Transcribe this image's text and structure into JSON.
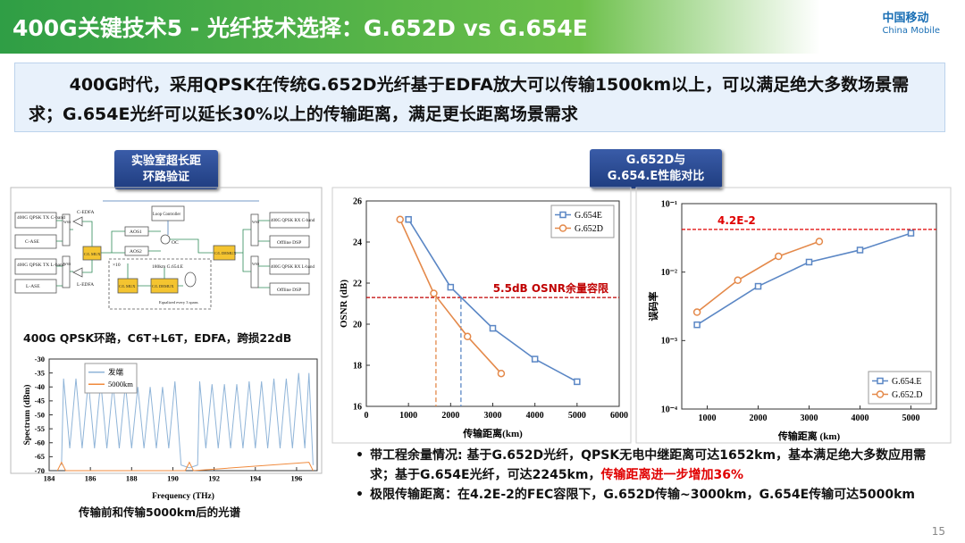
{
  "header": {
    "title": "400G关键技术5 - 光纤技术选择：G.652D vs G.654E",
    "logo_cn": "中国移动",
    "logo_en": "China Mobile"
  },
  "summary": "400G时代，采用QPSK在传统G.652D光纤基于EDFA放大可以传输1500km以上，可以满足绝大多数场景需求；G.654E光纤可以延长30%以上的传输距离，满足更长距离场景需求",
  "badges": [
    [
      "实验室超长距",
      "环路验证"
    ],
    [
      "G.652D与",
      "G.654.E性能对比"
    ]
  ],
  "diagram": {
    "nodes": [
      "400G QPSK TX C-band",
      "C-ASE",
      "400G QPSK TX L-band",
      "L-ASE",
      "WSS",
      "WSS",
      "C-EDFA",
      "L-EDFA",
      "C/L MUX",
      "AOS1",
      "AOS2",
      "OC",
      "Loop Controller",
      "C/L DEMUX",
      "WSS",
      "WSS",
      "400G QPSK RX C-band",
      "Offline DSP",
      "400G QPSK RX L-band",
      "Offline DSP",
      "×10",
      "180km G.654.E",
      "C/L MUX",
      "C/L DEMUX",
      "Equalized every 3 spans"
    ]
  },
  "captions": [
    "400G QPSK环路，C6T+L6T，EDFA，跨损22dB",
    "传输前和传输5000km后的光谱"
  ],
  "bullets": [
    [
      "带工程余量情况: 基于G.652D光纤，QPSK无电中继距离可达1652km，基本满足绝大多数应用需求；基于G.654E光纤，可达2245km，",
      "传输距离进一步增加36%"
    ],
    [
      "极限传输距离：在4.2E-2的FEC容限下，G.652D传输~3000km，G.654E传输可达5000km"
    ]
  ],
  "page_number": "15",
  "chart_data": [
    {
      "type": "line",
      "xlabel": "传输距离(km)",
      "ylabel": "OSNR (dB)",
      "xlim": [
        0,
        6000
      ],
      "xticks": [
        0,
        1000,
        2000,
        3000,
        4000,
        5000,
        6000
      ],
      "ylim": [
        16,
        26
      ],
      "yticks": [
        16,
        18,
        20,
        22,
        24,
        26
      ],
      "legend": "upper right",
      "series": [
        {
          "name": "G.654E",
          "color": "#5b87c5",
          "marker": "square",
          "x": [
            1000,
            2000,
            3000,
            4000,
            5000
          ],
          "values": [
            25.1,
            21.8,
            19.8,
            18.3,
            17.2
          ]
        },
        {
          "name": "G.652D",
          "color": "#e4894a",
          "marker": "circle",
          "x": [
            800,
            1600,
            2400,
            3200
          ],
          "values": [
            25.1,
            21.5,
            19.4,
            17.6
          ]
        }
      ],
      "hline": {
        "value": 21.3,
        "label": "5.5dB OSNR余量容限",
        "color": "#c00000"
      },
      "vlines": [
        {
          "x": 1652,
          "color": "#e4894a"
        },
        {
          "x": 2245,
          "color": "#5b87c5"
        }
      ]
    },
    {
      "type": "line",
      "log_y": true,
      "xlabel": "传输距离 (km)",
      "ylabel": "误码率",
      "xlim": [
        500,
        5500
      ],
      "xticks": [
        1000,
        2000,
        3000,
        4000,
        5000
      ],
      "ylim": [
        0.0001,
        0.1
      ],
      "yticks": [
        {
          "value": 0.0001,
          "label": "10⁻⁴"
        },
        {
          "value": 0.001,
          "label": "10⁻³"
        },
        {
          "value": 0.01,
          "label": "10⁻²"
        },
        {
          "value": 0.1,
          "label": "10⁻¹"
        }
      ],
      "legend": "lower right",
      "series": [
        {
          "name": "G.654.E",
          "color": "#5b87c5",
          "marker": "square",
          "x": [
            800,
            2000,
            3000,
            4000,
            5000
          ],
          "values": [
            0.0017,
            0.0062,
            0.014,
            0.021,
            0.037
          ]
        },
        {
          "name": "G.652.D",
          "color": "#e4894a",
          "marker": "circle",
          "x": [
            800,
            1600,
            2400,
            3200
          ],
          "values": [
            0.0026,
            0.0076,
            0.017,
            0.028
          ]
        }
      ],
      "hline": {
        "value": 0.042,
        "label": "4.2E-2",
        "color": "#e00000"
      }
    },
    {
      "type": "line",
      "xlabel": "Frequency (THz)",
      "ylabel": "Spectrum (dBm)",
      "xlim": [
        184,
        197
      ],
      "xticks": [
        184,
        186,
        188,
        190,
        192,
        194,
        196
      ],
      "ylim": [
        -70,
        -30
      ],
      "yticks": [
        -70,
        -65,
        -60,
        -55,
        -50,
        -45,
        -40,
        -35,
        -30
      ],
      "legend": "upper left",
      "series": [
        {
          "name": "发端",
          "color": "#8fb4d8",
          "x": [
            184.6,
            184.7,
            185.0,
            185.3,
            185.6,
            185.9,
            186.2,
            186.5,
            186.8,
            187.1,
            187.4,
            187.7,
            188.0,
            188.3,
            188.6,
            188.9,
            189.2,
            189.5,
            189.8,
            190.1,
            190.4,
            190.8,
            191.2,
            191.3,
            191.6,
            191.9,
            192.2,
            192.5,
            192.8,
            193.1,
            193.4,
            193.7,
            194.0,
            194.3,
            194.6,
            194.9,
            195.2,
            195.5,
            195.8,
            196.1,
            196.4,
            196.6,
            196.8
          ],
          "values": [
            -68,
            -37,
            -62,
            -37,
            -62,
            -38,
            -62,
            -38,
            -62,
            -39,
            -62,
            -39,
            -62,
            -40,
            -62,
            -40,
            -62,
            -40,
            -62,
            -38,
            -68,
            -69,
            -68,
            -38,
            -62,
            -39,
            -62,
            -39,
            -62,
            -39,
            -62,
            -38,
            -62,
            -38,
            -62,
            -37,
            -62,
            -37,
            -62,
            -35,
            -62,
            -35,
            -68
          ]
        },
        {
          "name": "5000km",
          "color": "#f08a3c",
          "x": [
            184.4,
            184.6,
            184.8,
            190.6,
            190.8,
            191.0,
            196.6,
            196.8
          ],
          "values": [
            -70,
            -67,
            -70,
            -70,
            -67,
            -70,
            -67,
            -70
          ]
        }
      ]
    }
  ]
}
